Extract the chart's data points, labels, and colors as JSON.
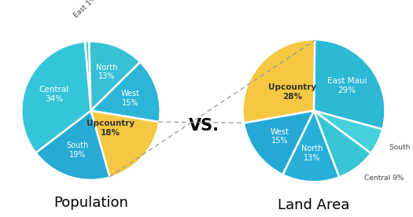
{
  "pop_labels": [
    "East",
    "North",
    "West",
    "Upcountry",
    "South",
    "Central"
  ],
  "pop_values": [
    1,
    13,
    15,
    18,
    19,
    34
  ],
  "pop_colors": [
    "#4ecdd8",
    "#38c0d5",
    "#2db5d8",
    "#f5c842",
    "#27aad4",
    "#35c5d8"
  ],
  "pop_startangle": 90,
  "pop_counterclock": false,
  "land_labels": [
    "Upcountry",
    "East Maui",
    "South",
    "Central",
    "North",
    "West"
  ],
  "land_values": [
    28,
    29,
    6,
    9,
    13,
    15
  ],
  "land_colors": [
    "#f5c842",
    "#2db8d4",
    "#45d0dc",
    "#38c5d5",
    "#28b0d8",
    "#25a8d4"
  ],
  "land_startangle": 90,
  "land_counterclock": false,
  "pop_title": "Population",
  "land_title": "Land Area",
  "vs_text": "VS.",
  "background": "#ffffff",
  "label_color_white": "#ffffff",
  "label_color_dark": "#444444",
  "upcountry_label_color": "#333333"
}
